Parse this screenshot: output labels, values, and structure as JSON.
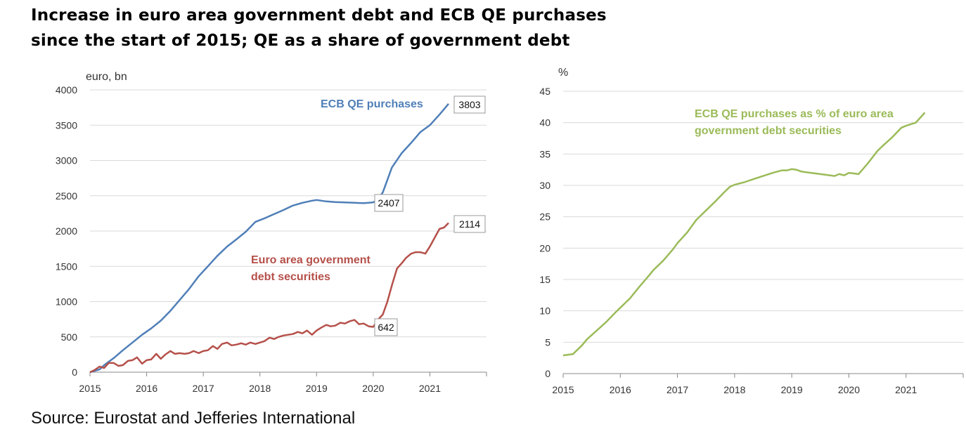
{
  "title": {
    "line1": "Increase in euro area government debt and ECB QE purchases",
    "line2": "since the start of 2015; QE as a share of government debt"
  },
  "source": "Source: Eurostat and Jefferies International",
  "colors": {
    "blue": "#4f7fb8",
    "red": "#b5504a",
    "green": "#9bbb59",
    "grid": "#d9d9d9",
    "axis": "#888888"
  },
  "chart_data": [
    {
      "type": "line",
      "ylabel": "euro, bn",
      "ylim": [
        0,
        4000
      ],
      "yticks": [
        0,
        500,
        1000,
        1500,
        2000,
        2500,
        3000,
        3500,
        4000
      ],
      "xlim": [
        2015,
        2022
      ],
      "xticks": [
        "2015",
        "2016",
        "2017",
        "2018",
        "2019",
        "2020",
        "2021"
      ],
      "grid": true,
      "series": [
        {
          "name": "ECB QE purchases",
          "color": "#4f7fb8",
          "x": [
            2015.0,
            2015.17,
            2015.25,
            2015.42,
            2015.58,
            2015.75,
            2015.92,
            2016.08,
            2016.25,
            2016.42,
            2016.58,
            2016.75,
            2016.92,
            2017.08,
            2017.25,
            2017.42,
            2017.58,
            2017.75,
            2017.92,
            2018.08,
            2018.25,
            2018.42,
            2018.58,
            2018.75,
            2018.92,
            2019.0,
            2019.17,
            2019.33,
            2019.5,
            2019.67,
            2019.83,
            2019.92,
            2020.0,
            2020.08,
            2020.17,
            2020.33,
            2020.5,
            2020.67,
            2020.83,
            2021.0,
            2021.17,
            2021.33
          ],
          "values": [
            0,
            40,
            100,
            200,
            310,
            420,
            530,
            620,
            730,
            870,
            1020,
            1180,
            1360,
            1500,
            1650,
            1780,
            1880,
            1990,
            2130,
            2180,
            2240,
            2300,
            2360,
            2400,
            2430,
            2440,
            2420,
            2410,
            2405,
            2400,
            2395,
            2400,
            2407,
            2440,
            2550,
            2900,
            3100,
            3250,
            3400,
            3500,
            3650,
            3803
          ]
        },
        {
          "name": "Euro area government debt securities",
          "color": "#b5504a",
          "x": [
            2015.0,
            2015.08,
            2015.17,
            2015.25,
            2015.33,
            2015.42,
            2015.5,
            2015.58,
            2015.67,
            2015.75,
            2015.83,
            2015.92,
            2016.0,
            2016.08,
            2016.17,
            2016.25,
            2016.33,
            2016.42,
            2016.5,
            2016.58,
            2016.67,
            2016.75,
            2016.83,
            2016.92,
            2017.0,
            2017.08,
            2017.17,
            2017.25,
            2017.33,
            2017.42,
            2017.5,
            2017.58,
            2017.67,
            2017.75,
            2017.83,
            2017.92,
            2018.0,
            2018.08,
            2018.17,
            2018.25,
            2018.33,
            2018.42,
            2018.5,
            2018.58,
            2018.67,
            2018.75,
            2018.83,
            2018.92,
            2019.0,
            2019.08,
            2019.17,
            2019.25,
            2019.33,
            2019.42,
            2019.5,
            2019.58,
            2019.67,
            2019.75,
            2019.83,
            2019.92,
            2020.0,
            2020.08,
            2020.17,
            2020.25,
            2020.33,
            2020.42,
            2020.5,
            2020.58,
            2020.67,
            2020.75,
            2020.83,
            2020.92,
            2021.0,
            2021.08,
            2021.17,
            2021.25,
            2021.33
          ],
          "values": [
            0,
            30,
            80,
            60,
            130,
            130,
            90,
            100,
            160,
            170,
            210,
            120,
            170,
            180,
            260,
            190,
            250,
            300,
            260,
            270,
            260,
            270,
            300,
            270,
            300,
            310,
            370,
            330,
            400,
            420,
            380,
            390,
            410,
            390,
            420,
            400,
            420,
            440,
            490,
            470,
            500,
            520,
            530,
            540,
            570,
            550,
            590,
            530,
            590,
            630,
            670,
            650,
            660,
            700,
            690,
            720,
            740,
            680,
            690,
            650,
            642,
            740,
            820,
            1000,
            1230,
            1470,
            1540,
            1620,
            1680,
            1700,
            1700,
            1680,
            1780,
            1900,
            2030,
            2050,
            2114
          ]
        }
      ],
      "annotations": [
        {
          "text": "ECB QE purchases",
          "color": "#4f7fb8"
        },
        {
          "line1": "Euro area government",
          "line2": "debt securities",
          "color": "#b5504a"
        }
      ],
      "data_labels": [
        "3803",
        "2407",
        "2114",
        "642"
      ]
    },
    {
      "type": "line",
      "ylabel": "%",
      "ylim": [
        0,
        45
      ],
      "yticks": [
        0,
        5,
        10,
        15,
        20,
        25,
        30,
        35,
        40,
        45
      ],
      "xlim": [
        2015,
        2022
      ],
      "xticks": [
        "2015",
        "2016",
        "2017",
        "2018",
        "2019",
        "2020",
        "2021"
      ],
      "grid": true,
      "series": [
        {
          "name": "ECB QE purchases as % of euro area government debt securities",
          "color": "#9bbb59",
          "x": [
            2015.0,
            2015.17,
            2015.33,
            2015.42,
            2015.58,
            2015.75,
            2015.92,
            2016.0,
            2016.17,
            2016.33,
            2016.5,
            2016.58,
            2016.75,
            2016.92,
            2017.0,
            2017.17,
            2017.33,
            2017.5,
            2017.67,
            2017.83,
            2017.92,
            2018.0,
            2018.08,
            2018.17,
            2018.33,
            2018.5,
            2018.67,
            2018.83,
            2018.92,
            2019.0,
            2019.08,
            2019.17,
            2019.33,
            2019.5,
            2019.67,
            2019.75,
            2019.83,
            2019.92,
            2020.0,
            2020.17,
            2020.33,
            2020.5,
            2020.58,
            2020.75,
            2020.92,
            2021.0,
            2021.17,
            2021.33
          ],
          "values": [
            2.9,
            3.1,
            4.5,
            5.5,
            6.8,
            8.2,
            9.8,
            10.5,
            12.0,
            13.8,
            15.6,
            16.5,
            18.0,
            19.8,
            20.8,
            22.5,
            24.5,
            26.0,
            27.5,
            29.0,
            29.8,
            30.1,
            30.3,
            30.5,
            31.0,
            31.5,
            32.0,
            32.4,
            32.4,
            32.6,
            32.5,
            32.2,
            32.0,
            31.8,
            31.6,
            31.5,
            31.8,
            31.6,
            32.0,
            31.8,
            33.5,
            35.5,
            36.2,
            37.6,
            39.2,
            39.5,
            40.0,
            41.6
          ]
        }
      ],
      "annotations": [
        {
          "line1": "ECB QE purchases as % of euro area",
          "line2": "government debt securities",
          "color": "#9bbb59"
        }
      ]
    }
  ]
}
